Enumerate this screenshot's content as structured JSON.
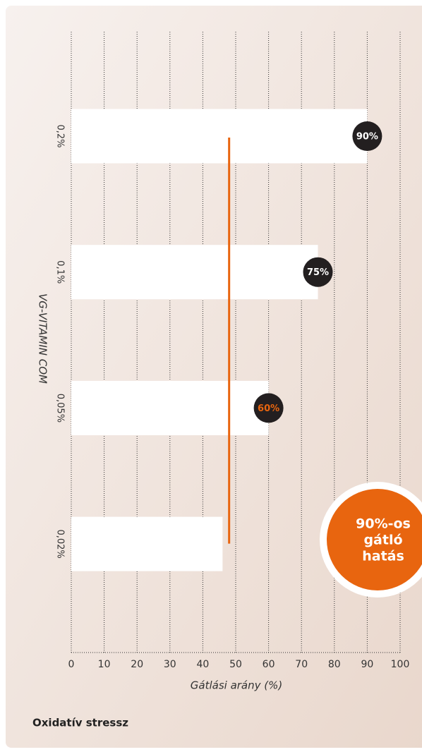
{
  "chart_data": {
    "type": "bar",
    "orientation": "horizontal",
    "title": "Oxidatív stressz",
    "xlabel": "Gátlási arány (%)",
    "ylabel": "VG-VITAMIN COM",
    "categories": [
      "0,2%",
      "0,1%",
      "0,05%",
      "0,02%"
    ],
    "values": [
      90,
      75,
      60,
      46
    ],
    "value_labels": [
      "90%",
      "75%",
      "60%",
      null
    ],
    "value_label_colors": [
      "#ffffff",
      "#ffffff",
      "#e8650f",
      null
    ],
    "color": "#ffffff",
    "badge_color": "#231f20",
    "xlim": [
      0,
      100
    ],
    "xticks": [
      0,
      10,
      20,
      30,
      40,
      50,
      60,
      70,
      80,
      90,
      100
    ],
    "grid": true,
    "reference_line": {
      "value": 48,
      "color": "#e8650f"
    },
    "callout": {
      "lines": [
        "90%-os",
        "gátló",
        "hatás"
      ],
      "color": "#e8650f"
    }
  }
}
